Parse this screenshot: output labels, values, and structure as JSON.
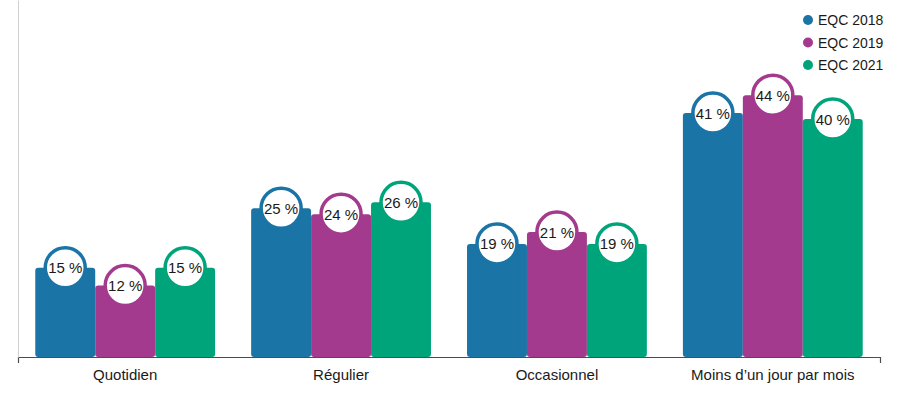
{
  "chart_data": {
    "type": "bar",
    "categories": [
      "Quotidien",
      "Régulier",
      "Occasionnel",
      "Moins d’un jour par mois"
    ],
    "series": [
      {
        "name": "EQC 2018",
        "color": "#1a74a6",
        "values": [
          15,
          25,
          19,
          41
        ],
        "value_labels": [
          "15 %",
          "25 %",
          "19 %",
          "41 %"
        ]
      },
      {
        "name": "EQC 2019",
        "color": "#a33a8e",
        "values": [
          12,
          24,
          21,
          44
        ],
        "value_labels": [
          "12 %",
          "24 %",
          "21 %",
          "44 %"
        ]
      },
      {
        "name": "EQC 2021",
        "color": "#00a47a",
        "values": [
          15,
          26,
          19,
          40
        ],
        "value_labels": [
          "15 %",
          "26 %",
          "19 %",
          "40 %"
        ]
      }
    ],
    "ylim": [
      0,
      60
    ],
    "legend": "top-right",
    "data_labels": true,
    "tick_labels": "x"
  }
}
